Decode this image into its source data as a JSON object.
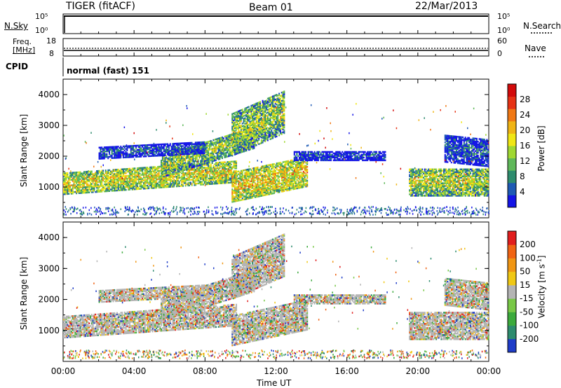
{
  "header": {
    "title": "TIGER (fitACF)",
    "beam": "Beam 01",
    "date": "22/Mar/2013"
  },
  "status_panels": {
    "nsky_label": "N.Sky",
    "nsearch_label": "N.Search",
    "freq_label_line1": "Freq.",
    "freq_label_line2": "[MHz]",
    "nave_label": "Nave",
    "cpid_label": "CPID",
    "cpid_value": "normal (fast) 151",
    "nsky_ticks": [
      "10^5",
      "10^0"
    ],
    "nsearch_ticks": [
      "10^5",
      "10^0"
    ],
    "freq_ticks": [
      "18",
      "8"
    ],
    "nave_ticks": [
      "60",
      "0"
    ]
  },
  "chart_data": [
    {
      "type": "heatmap",
      "name": "power",
      "ylabel": "Slant Range [km]",
      "xlim_hours": [
        0,
        24
      ],
      "ylim": [
        0,
        4500
      ],
      "y_ticks": [
        1000,
        2000,
        3000,
        4000
      ],
      "x_ticks": [
        "00:00",
        "04:00",
        "08:00",
        "12:00",
        "16:00",
        "20:00",
        "00:00"
      ],
      "colorbar": {
        "label": "Power [dB]",
        "ticks": [
          "28",
          "24",
          "20",
          "16",
          "12",
          "8",
          "4"
        ],
        "colors": [
          "#1414e6",
          "#1e5ab4",
          "#2e8c6e",
          "#5fb85a",
          "#a0d832",
          "#f0e614",
          "#f0b414",
          "#f07814",
          "#e63214",
          "#d20a0a"
        ]
      },
      "echo_regions": [
        {
          "t0": 0.0,
          "t1": 9.8,
          "r0": 750,
          "r1": 1450,
          "slope": 40,
          "level": 0.55
        },
        {
          "t0": 5.5,
          "t1": 10.8,
          "r0": 1300,
          "r1": 2000,
          "slope": 180,
          "level": 0.45
        },
        {
          "t0": 9.5,
          "t1": 13.8,
          "r0": 500,
          "r1": 1500,
          "slope": 120,
          "level": 0.6
        },
        {
          "t0": 2.0,
          "t1": 8.0,
          "r0": 1900,
          "r1": 2300,
          "slope": 30,
          "level": 0.15
        },
        {
          "t0": 9.5,
          "t1": 12.5,
          "r0": 2000,
          "r1": 3400,
          "slope": 250,
          "level": 0.45
        },
        {
          "t0": 13.0,
          "t1": 18.2,
          "r0": 1850,
          "r1": 2150,
          "slope": 0,
          "level": 0.12
        },
        {
          "t0": 19.5,
          "t1": 24.0,
          "r0": 700,
          "r1": 1600,
          "slope": 0,
          "level": 0.5
        },
        {
          "t0": 21.5,
          "t1": 24.0,
          "r0": 1800,
          "r1": 2700,
          "slope": -60,
          "level": 0.15
        }
      ]
    },
    {
      "type": "heatmap",
      "name": "velocity",
      "ylabel": "Slant Range [km]",
      "xlabel": "Time UT",
      "xlim_hours": [
        0,
        24
      ],
      "ylim": [
        0,
        4500
      ],
      "y_ticks": [
        1000,
        2000,
        3000,
        4000
      ],
      "x_ticks": [
        "00:00",
        "04:00",
        "08:00",
        "12:00",
        "16:00",
        "20:00",
        "00:00"
      ],
      "colorbar": {
        "label": "Velocity [m s^-1]",
        "label_main": "Velocity [m s",
        "label_sup": "-1",
        "label_end": "]",
        "ticks": [
          "200",
          "100",
          "50",
          "15",
          "-15",
          "-50",
          "-100",
          "-200"
        ],
        "colors": [
          "#1e3cc8",
          "#2e8c6e",
          "#3caa3c",
          "#78c846",
          "#b4b4b4",
          "#f0c814",
          "#f09614",
          "#f06414",
          "#e11e1e"
        ]
      }
    }
  ]
}
